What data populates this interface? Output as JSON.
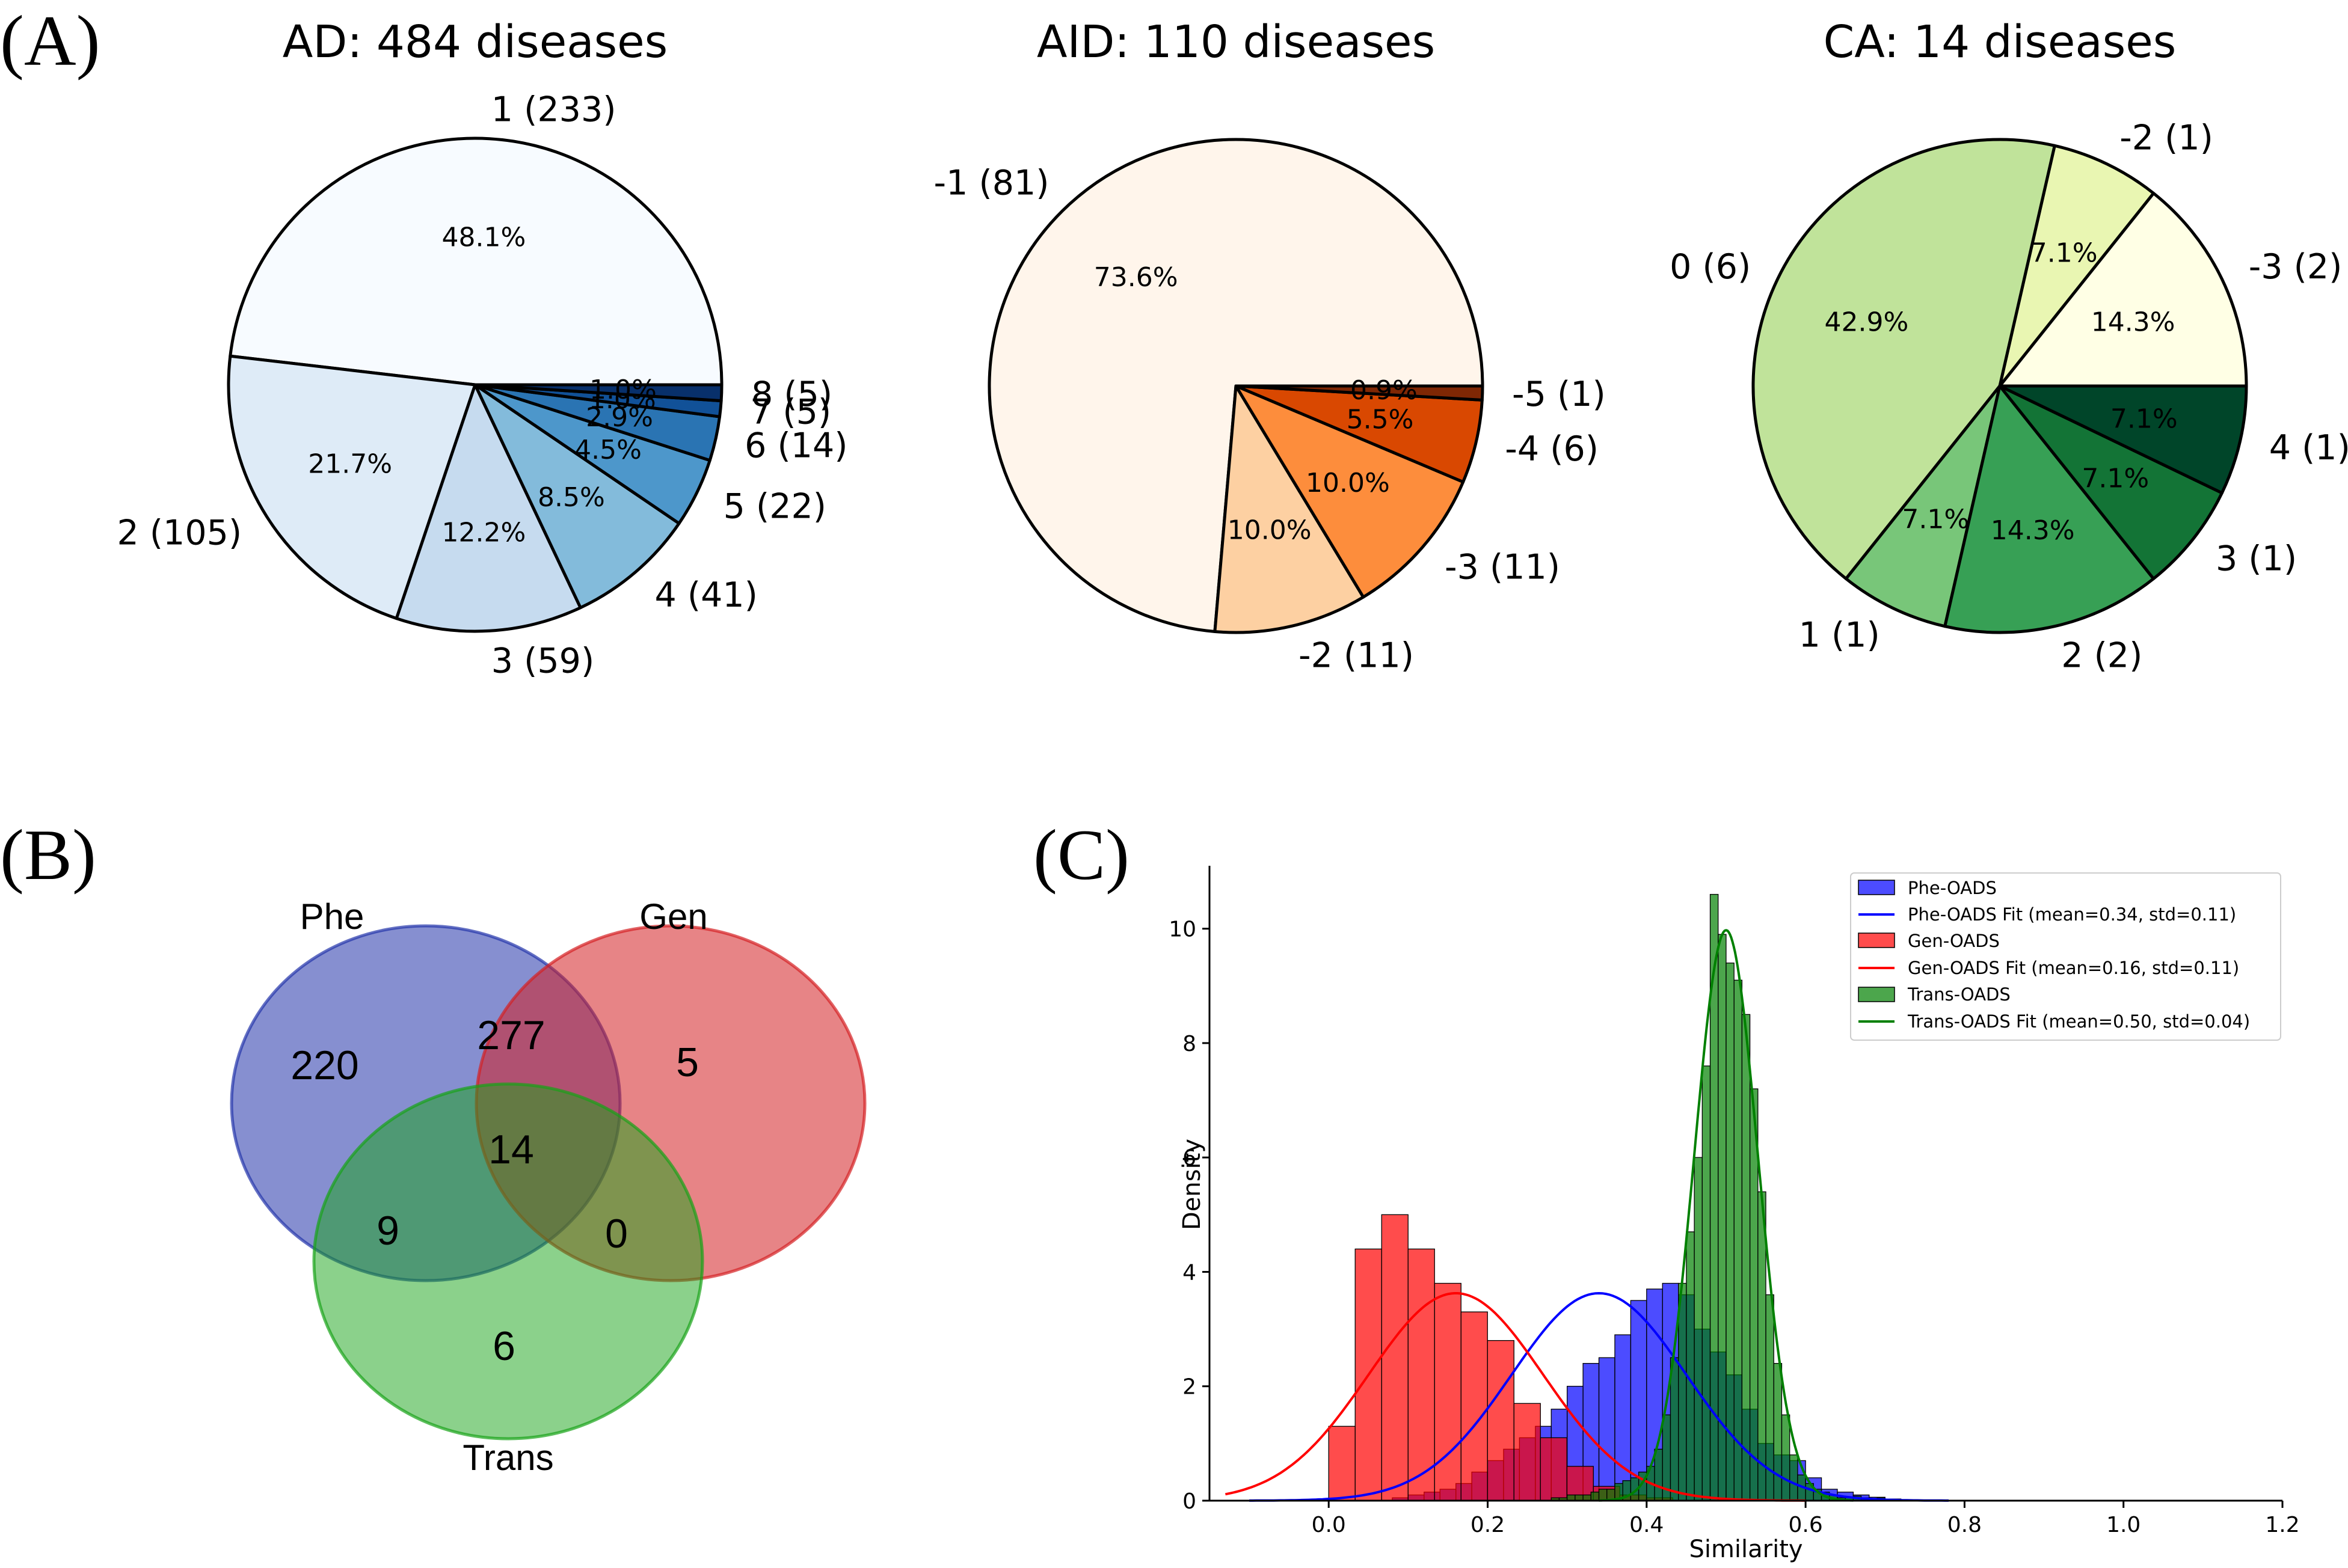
{
  "panels": {
    "a": "(A)",
    "b": "(B)",
    "c": "(C)"
  },
  "chart_data": [
    {
      "type": "pie",
      "title": "AD: 484 diseases",
      "slices": [
        {
          "label": "1 (233)",
          "value": 233,
          "pct": "48.1%",
          "color": "#f7fbff"
        },
        {
          "label": "2 (105)",
          "value": 105,
          "pct": "21.7%",
          "color": "#deebf7"
        },
        {
          "label": "3 (59)",
          "value": 59,
          "pct": "12.2%",
          "color": "#c6dbef"
        },
        {
          "label": "4 (41)",
          "value": 41,
          "pct": "8.5%",
          "color": "#83bbdb"
        },
        {
          "label": "5 (22)",
          "value": 22,
          "pct": "4.5%",
          "color": "#4d97cb"
        },
        {
          "label": "6 (14)",
          "value": 14,
          "pct": "2.9%",
          "color": "#2a74b3"
        },
        {
          "label": "7 (5)",
          "value": 5,
          "pct": "1.0%",
          "color": "#115198"
        },
        {
          "label": "8 (5)",
          "value": 5,
          "pct": "1.0%",
          "color": "#08306b"
        }
      ]
    },
    {
      "type": "pie",
      "title": "AID: 110 diseases",
      "slices": [
        {
          "label": "-1 (81)",
          "value": 81,
          "pct": "73.6%",
          "color": "#fff5eb"
        },
        {
          "label": "-2 (11)",
          "value": 11,
          "pct": "10.0%",
          "color": "#fdd0a2"
        },
        {
          "label": "-3 (11)",
          "value": 11,
          "pct": "10.0%",
          "color": "#fd8d3c"
        },
        {
          "label": "-4 (6)",
          "value": 6,
          "pct": "5.5%",
          "color": "#d94801"
        },
        {
          "label": "-5 (1)",
          "value": 1,
          "pct": "0.9%",
          "color": "#7f2704"
        }
      ]
    },
    {
      "type": "pie",
      "title": "CA: 14 diseases",
      "slices": [
        {
          "label": "-3 (2)",
          "value": 2,
          "pct": "14.3%",
          "color": "#ffffe5"
        },
        {
          "label": "-2 (1)",
          "value": 1,
          "pct": "7.1%",
          "color": "#e9f6b2"
        },
        {
          "label": "0 (6)",
          "value": 6,
          "pct": "42.9%",
          "color": "#c0e39a"
        },
        {
          "label": "1 (1)",
          "value": 1,
          "pct": "7.1%",
          "color": "#78c679"
        },
        {
          "label": "2 (2)",
          "value": 2,
          "pct": "14.3%",
          "color": "#37a055"
        },
        {
          "label": "3 (1)",
          "value": 1,
          "pct": "7.1%",
          "color": "#137436"
        },
        {
          "label": "4 (1)",
          "value": 1,
          "pct": "7.1%",
          "color": "#004529"
        }
      ]
    },
    {
      "type": "venn",
      "sets": [
        "Phe",
        "Gen",
        "Trans"
      ],
      "colors": {
        "Phe": "#2233aa",
        "Gen": "#d41f22",
        "Trans": "#17a317"
      },
      "regions": {
        "Phe_only": 220,
        "Gen_only": 5,
        "Trans_only": 6,
        "Phe_Gen": 277,
        "Phe_Trans": 9,
        "Gen_Trans": 0,
        "Phe_Gen_Trans": 14
      }
    },
    {
      "type": "histogram",
      "xlabel": "Similarity",
      "ylabel": "Density",
      "xlim": [
        -0.15,
        1.2
      ],
      "ylim": [
        0,
        11.1
      ],
      "xticks": [
        "0.0",
        "0.2",
        "0.4",
        "0.6",
        "0.8",
        "1.0",
        "1.2"
      ],
      "xtick_values": [
        0.0,
        0.2,
        0.4,
        0.6,
        0.8,
        1.0,
        1.2
      ],
      "yticks": [
        "0",
        "2",
        "4",
        "6",
        "8",
        "10"
      ],
      "ytick_values": [
        0,
        2,
        4,
        6,
        8,
        10
      ],
      "legend_position": "top-right",
      "legend": [
        "Phe-OADS",
        "Phe-OADS  Fit (mean=0.34, std=0.11)",
        "Gen-OADS",
        "Gen-OADS Fit (mean=0.16, std=0.11)",
        "Trans-OADS",
        "Trans-OADS Fit (mean=0.50, std=0.04)"
      ],
      "series": [
        {
          "name": "Phe-OADS",
          "color": "#0000ff",
          "bin_start": 0.08,
          "bin_width": 0.02,
          "heights": [
            0.05,
            0.1,
            0.15,
            0.2,
            0.3,
            0.5,
            0.7,
            0.9,
            1.1,
            1.3,
            1.6,
            2.0,
            2.4,
            2.5,
            2.9,
            3.5,
            3.7,
            3.8,
            3.6,
            3.0,
            2.6,
            2.2,
            1.6,
            1.0,
            0.8,
            0.7,
            0.4,
            0.2,
            0.15,
            0.1,
            0.06
          ]
        },
        {
          "name": "Gen-OADS",
          "color": "#ff0000",
          "bin_start": 0.0,
          "bin_width": 0.0333,
          "heights": [
            1.3,
            4.4,
            5.0,
            4.4,
            3.8,
            3.3,
            2.8,
            1.7,
            1.1,
            0.6,
            0.25,
            0.1,
            0.05
          ]
        },
        {
          "name": "Trans-OADS",
          "color": "#008000",
          "bin_start": 0.28,
          "bin_width": 0.01,
          "heights": [
            0.05,
            0.05,
            0.1,
            0.1,
            0.1,
            0.15,
            0.2,
            0.2,
            0.3,
            0.35,
            0.4,
            0.5,
            0.6,
            0.9,
            1.5,
            2.5,
            3.8,
            4.7,
            6.0,
            7.6,
            10.6,
            9.9,
            9.4,
            9.1,
            8.5,
            7.2,
            5.4,
            3.6,
            2.4,
            1.5,
            0.8,
            0.45,
            0.3,
            0.2,
            0.15,
            0.1,
            0.05,
            0.05,
            0.08,
            0.05,
            0.04,
            0.05,
            0.03,
            0.03
          ]
        }
      ],
      "fits": [
        {
          "name": "Phe-OADS Fit",
          "mean": 0.34,
          "std": 0.11,
          "color": "#0000ff"
        },
        {
          "name": "Gen-OADS Fit",
          "mean": 0.16,
          "std": 0.11,
          "color": "#ff0000"
        },
        {
          "name": "Trans-OADS Fit",
          "mean": 0.5,
          "std": 0.04,
          "color": "#008000"
        }
      ]
    }
  ]
}
